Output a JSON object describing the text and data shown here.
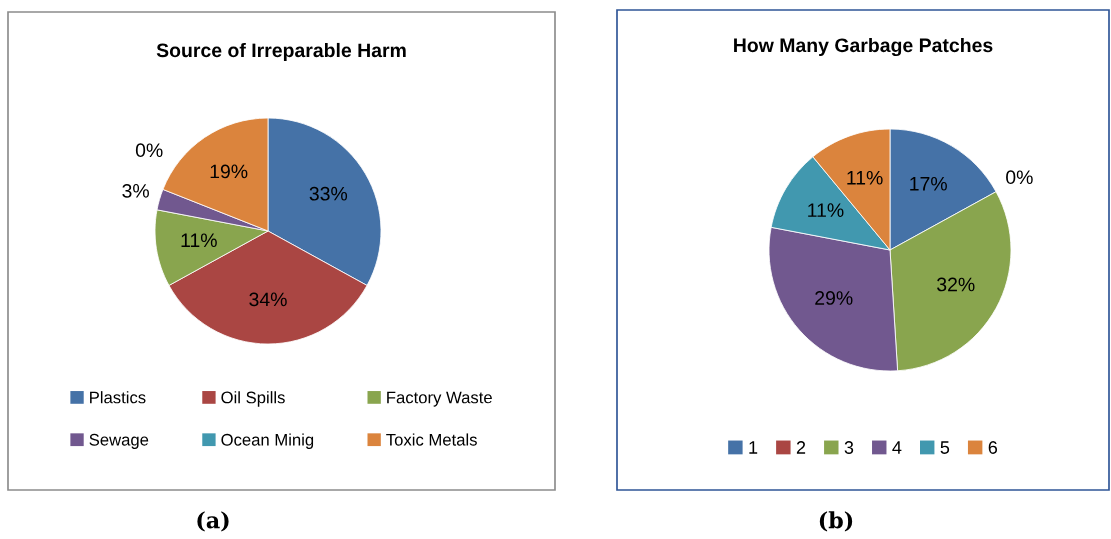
{
  "chart_data": [
    {
      "type": "pie",
      "title": "Source of Irreparable Harm",
      "categories": [
        "Plastics",
        "Oil Spills",
        "Factory Waste",
        "Sewage",
        "Ocean Minig",
        "Toxic Metals"
      ],
      "values": [
        33,
        34,
        11,
        3,
        0,
        19
      ],
      "colors": [
        "#4572a7",
        "#aa4643",
        "#89a54e",
        "#71588f",
        "#4198af",
        "#db843d"
      ],
      "value_labels": [
        "33%",
        "34%",
        "11%",
        "3%",
        "0%",
        "19%"
      ],
      "legend": "bottom",
      "annotations": [
        "(a)"
      ]
    },
    {
      "type": "pie",
      "title": "How Many Garbage Patches",
      "categories": [
        "1",
        "2",
        "3",
        "4",
        "5",
        "6"
      ],
      "values": [
        17,
        0,
        32,
        29,
        11,
        11
      ],
      "colors": [
        "#4572a7",
        "#aa4643",
        "#89a54e",
        "#71588f",
        "#4198af",
        "#db843d"
      ],
      "value_labels": [
        "17%",
        "0%",
        "32%",
        "29%",
        "11%",
        "11%"
      ],
      "legend": "bottom",
      "annotations": [
        "(b)"
      ]
    }
  ]
}
